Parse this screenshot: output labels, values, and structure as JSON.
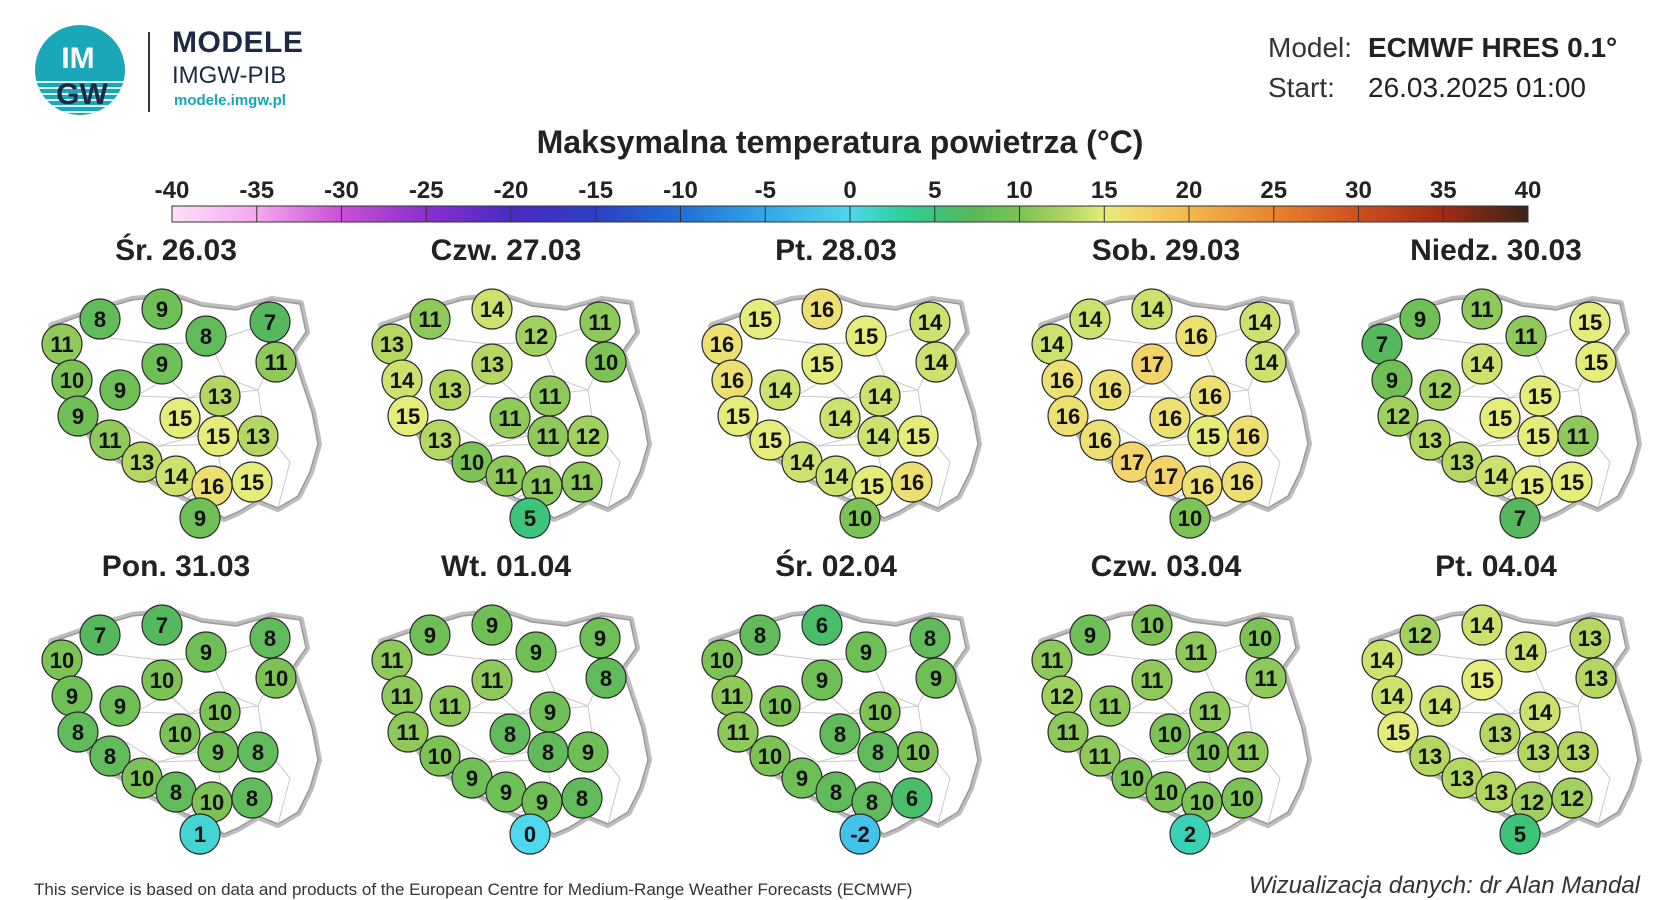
{
  "header": {
    "logo_text_top": "IM",
    "logo_text_bottom": "GW",
    "brand_name": "MODELE",
    "brand_sub": "IMGW-PIB",
    "brand_url": "modele.imgw.pl",
    "model_label": "Model:",
    "model_value": "ECMWF HRES 0.1°",
    "start_label": "Start:",
    "start_value": "26.03.2025 01:00"
  },
  "colors": {
    "logo_bg": "#1aa7b8",
    "map_fill": "#ffffff",
    "map_border": "#c8c8c8"
  },
  "footer": {
    "note": "This service is based on data and products of the European Centre for Medium-Range Weather Forecasts (ECMWF)",
    "credit": "Wizualizacja danych: dr Alan Mandal"
  },
  "chart_data": {
    "type": "map-grid",
    "title": "Maksymalna temperatura powietrza (°C)",
    "colorbar": {
      "ticks": [
        -40,
        -35,
        -30,
        -25,
        -20,
        -15,
        -10,
        -5,
        0,
        5,
        10,
        15,
        20,
        25,
        30,
        35,
        40
      ],
      "range": [
        -40,
        40
      ]
    },
    "panels": [
      {
        "label": "Śr. 26.03",
        "values": [
          11,
          8,
          9,
          8,
          7,
          11,
          10,
          9,
          9,
          13,
          9,
          11,
          13,
          15,
          15,
          13,
          14,
          16,
          15,
          9
        ]
      },
      {
        "label": "Czw. 27.03",
        "values": [
          13,
          11,
          14,
          12,
          11,
          10,
          14,
          13,
          13,
          11,
          15,
          13,
          10,
          11,
          11,
          12,
          11,
          11,
          11,
          5
        ]
      },
      {
        "label": "Pt. 28.03",
        "values": [
          16,
          15,
          16,
          15,
          14,
          14,
          16,
          14,
          15,
          14,
          15,
          15,
          14,
          14,
          14,
          15,
          14,
          15,
          16,
          10
        ]
      },
      {
        "label": "Sob. 29.03",
        "values": [
          14,
          14,
          14,
          16,
          14,
          14,
          16,
          16,
          17,
          16,
          16,
          16,
          17,
          16,
          15,
          16,
          17,
          16,
          16,
          10
        ]
      },
      {
        "label": "Niedz. 30.03",
        "values": [
          7,
          9,
          11,
          11,
          15,
          15,
          9,
          12,
          14,
          15,
          12,
          13,
          13,
          15,
          15,
          11,
          14,
          15,
          15,
          7
        ]
      },
      {
        "label": "Pon. 31.03",
        "values": [
          10,
          7,
          7,
          9,
          8,
          10,
          9,
          9,
          10,
          10,
          8,
          8,
          10,
          10,
          9,
          8,
          8,
          10,
          8,
          1
        ]
      },
      {
        "label": "Wt. 01.04",
        "values": [
          11,
          9,
          9,
          9,
          9,
          8,
          11,
          11,
          11,
          9,
          11,
          10,
          9,
          8,
          8,
          9,
          9,
          9,
          8,
          0
        ]
      },
      {
        "label": "Śr. 02.04",
        "values": [
          10,
          8,
          6,
          9,
          8,
          9,
          11,
          10,
          9,
          10,
          11,
          10,
          9,
          8,
          8,
          10,
          8,
          8,
          6,
          -2
        ]
      },
      {
        "label": "Czw. 03.04",
        "values": [
          11,
          9,
          10,
          11,
          10,
          11,
          12,
          11,
          11,
          11,
          11,
          11,
          10,
          10,
          10,
          11,
          10,
          10,
          10,
          2
        ]
      },
      {
        "label": "Pt. 04.04",
        "values": [
          14,
          12,
          14,
          14,
          13,
          13,
          14,
          14,
          15,
          14,
          15,
          13,
          13,
          13,
          13,
          13,
          13,
          12,
          12,
          5
        ]
      }
    ]
  }
}
